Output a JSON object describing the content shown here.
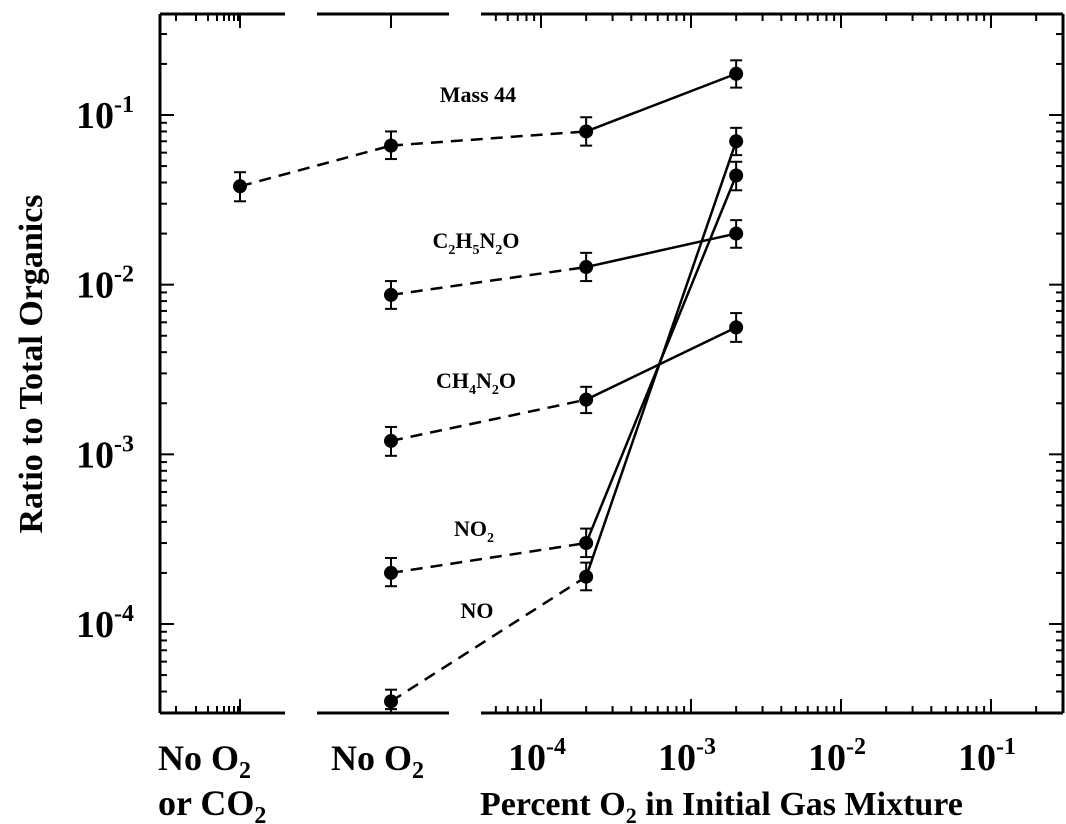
{
  "chart_data": {
    "type": "scatter",
    "title": "",
    "ylabel": "Ratio to Total Organics",
    "xlabel": {
      "prefix": "Percent O",
      "sub": "2",
      "suffix": " in Initial Gas Mixture"
    },
    "yscale": "log",
    "ylim": [
      3e-05,
      0.4
    ],
    "xscale": "log",
    "xlim": [
      1.5e-05,
      0.35
    ],
    "y_ticks": [
      {
        "value": 0.1,
        "base": "10",
        "exp": "-1"
      },
      {
        "value": 0.01,
        "base": "10",
        "exp": "-2"
      },
      {
        "value": 0.001,
        "base": "10",
        "exp": "-3"
      },
      {
        "value": 0.0001,
        "base": "10",
        "exp": "-4"
      }
    ],
    "x_ticks": [
      {
        "value": 0.0001,
        "base": "10",
        "exp": "-4"
      },
      {
        "value": 0.001,
        "base": "10",
        "exp": "-3"
      },
      {
        "value": 0.01,
        "base": "10",
        "exp": "-2"
      },
      {
        "value": 0.1,
        "base": "10",
        "exp": "-1"
      }
    ],
    "categories": [
      {
        "id": "no_o2_or_co2",
        "line1": {
          "a": "No O",
          "sub": "2",
          "b": ""
        },
        "line2": {
          "a": "or CO",
          "sub": "2",
          "b": ""
        }
      },
      {
        "id": "no_o2",
        "line1": {
          "a": "No O",
          "sub": "2",
          "b": ""
        }
      }
    ],
    "series": [
      {
        "name": "Mass 44",
        "label_parts": [
          {
            "t": "Mass 44"
          }
        ],
        "points": [
          {
            "x": "no_o2_or_co2",
            "y": 0.038,
            "err": [
              0.031,
              0.046
            ]
          },
          {
            "x": "no_o2",
            "y": 0.066,
            "err": [
              0.055,
              0.08
            ]
          },
          {
            "x": 0.0002,
            "y": 0.08,
            "err": [
              0.066,
              0.097
            ]
          },
          {
            "x": 0.002,
            "y": 0.175,
            "err": [
              0.145,
              0.21
            ]
          }
        ]
      },
      {
        "name": "C2H5N2O",
        "label_parts": [
          {
            "t": "C"
          },
          {
            "t": "2",
            "sub": true
          },
          {
            "t": "H"
          },
          {
            "t": "5",
            "sub": true
          },
          {
            "t": "N"
          },
          {
            "t": "2",
            "sub": true
          },
          {
            "t": "O"
          }
        ],
        "points": [
          {
            "x": "no_o2",
            "y": 0.0087,
            "err": [
              0.0072,
              0.0105
            ]
          },
          {
            "x": 0.0002,
            "y": 0.0127,
            "err": [
              0.0105,
              0.0154
            ]
          },
          {
            "x": 0.002,
            "y": 0.02,
            "err": [
              0.0165,
              0.024
            ]
          }
        ]
      },
      {
        "name": "CH4N2O",
        "label_parts": [
          {
            "t": "CH"
          },
          {
            "t": "4",
            "sub": true
          },
          {
            "t": "N"
          },
          {
            "t": "2",
            "sub": true
          },
          {
            "t": "O"
          }
        ],
        "points": [
          {
            "x": "no_o2",
            "y": 0.0012,
            "err": [
              0.00098,
              0.00145
            ]
          },
          {
            "x": 0.0002,
            "y": 0.0021,
            "err": [
              0.00175,
              0.0025
            ]
          },
          {
            "x": 0.002,
            "y": 0.0056,
            "err": [
              0.0046,
              0.0068
            ]
          }
        ]
      },
      {
        "name": "NO2",
        "label_parts": [
          {
            "t": "NO"
          },
          {
            "t": "2",
            "sub": true
          }
        ],
        "points": [
          {
            "x": "no_o2",
            "y": 0.0002,
            "err": [
              0.000167,
              0.000245
            ]
          },
          {
            "x": 0.0002,
            "y": 0.0003,
            "err": [
              0.000248,
              0.000365
            ]
          },
          {
            "x": 0.002,
            "y": 0.044,
            "err": [
              0.036,
              0.053
            ]
          }
        ]
      },
      {
        "name": "NO",
        "label_parts": [
          {
            "t": "NO"
          }
        ],
        "points": [
          {
            "x": "no_o2",
            "y": 3.5e-05,
            "err": [
              3.15e-05,
              4.1e-05
            ]
          },
          {
            "x": 0.0002,
            "y": 0.00019,
            "err": [
              0.000158,
              0.00023
            ]
          },
          {
            "x": 0.002,
            "y": 0.07,
            "err": [
              0.058,
              0.084
            ]
          }
        ]
      }
    ],
    "line_style": "dashed segments connect no-O2 points; solid segments connect O2 points",
    "grid": false,
    "legend": "none (labels placed on plot)"
  }
}
